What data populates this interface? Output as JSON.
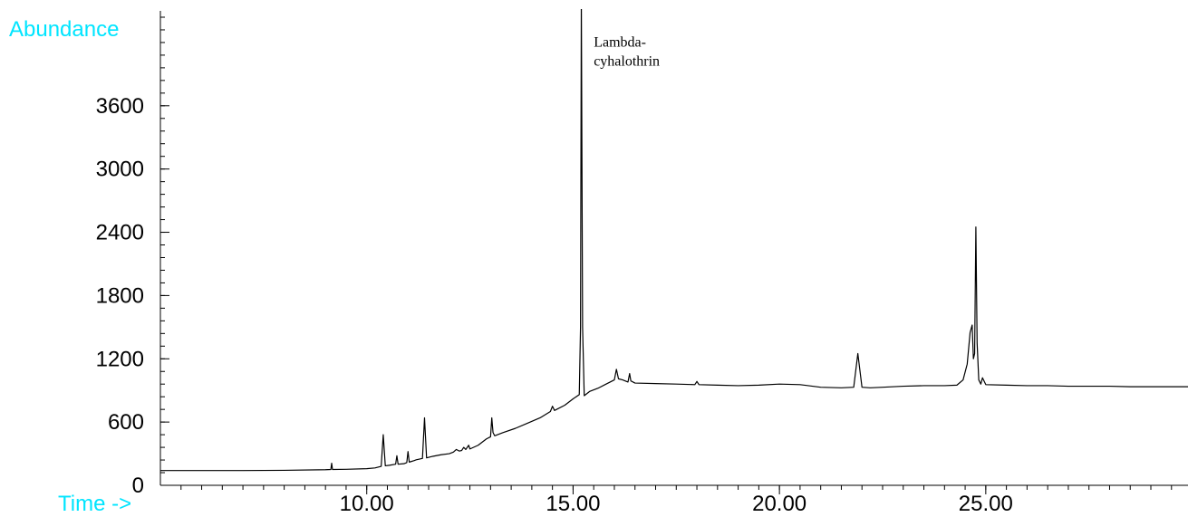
{
  "chart_data": {
    "type": "line",
    "ylabel": "Abundance",
    "xlabel": "Time ->",
    "xlim": [
      5.0,
      29.9
    ],
    "ylim": [
      0,
      4500
    ],
    "x_ticks": [
      10.0,
      15.0,
      20.0,
      25.0
    ],
    "x_tick_labels": [
      "10.00",
      "15.00",
      "20.00",
      "25.00"
    ],
    "y_ticks": [
      0,
      600,
      1200,
      1800,
      2400,
      3000,
      3600
    ],
    "y_tick_labels": [
      "0",
      "600",
      "1200",
      "1800",
      "2400",
      "3000",
      "3600"
    ],
    "x_minor_step": 0.5,
    "y_minor_step": 120,
    "grid": false,
    "colors": {
      "axis_label": "#00e5ff",
      "line": "#000000",
      "text": "#000000"
    },
    "annotation": {
      "lines": [
        "Lambda-",
        "cyhalothrin"
      ],
      "x": 15.5,
      "y": 4160
    },
    "series": [
      {
        "x": [
          5.0,
          6.0,
          7.0,
          8.0,
          9.0,
          9.13,
          9.15,
          9.17,
          9.5,
          10.0,
          10.2,
          10.35,
          10.4,
          10.45,
          10.55,
          10.7,
          10.73,
          10.76,
          10.9,
          10.97,
          11.0,
          11.03,
          11.15,
          11.2,
          11.35,
          11.4,
          11.45,
          11.6,
          11.8,
          12.0,
          12.1,
          12.17,
          12.24,
          12.3,
          12.35,
          12.4,
          12.47,
          12.5,
          12.53,
          12.7,
          12.9,
          13.0,
          13.03,
          13.06,
          13.1,
          13.3,
          13.6,
          13.9,
          14.2,
          14.45,
          14.5,
          14.55,
          14.6,
          14.8,
          15.0,
          15.15,
          15.18,
          15.2,
          15.23,
          15.27,
          15.4,
          15.6,
          15.8,
          16.0,
          16.05,
          16.1,
          16.2,
          16.33,
          16.37,
          16.4,
          16.5,
          17.0,
          17.5,
          17.95,
          18.0,
          18.05,
          18.5,
          19.0,
          19.5,
          20.0,
          20.5,
          21.0,
          21.5,
          21.8,
          21.9,
          22.0,
          22.2,
          22.5,
          23.0,
          23.5,
          24.0,
          24.3,
          24.45,
          24.55,
          24.62,
          24.67,
          24.7,
          24.73,
          24.76,
          24.79,
          24.83,
          24.88,
          24.92,
          25.0,
          25.5,
          26.0,
          26.5,
          27.0,
          27.5,
          28.0,
          28.5,
          29.0,
          29.5,
          29.9
        ],
        "y": [
          140,
          140,
          140,
          142,
          148,
          150,
          210,
          150,
          152,
          158,
          165,
          180,
          480,
          185,
          190,
          200,
          280,
          200,
          205,
          215,
          320,
          220,
          235,
          242,
          255,
          640,
          260,
          275,
          290,
          300,
          315,
          340,
          325,
          330,
          360,
          340,
          380,
          345,
          350,
          380,
          440,
          460,
          640,
          500,
          470,
          500,
          540,
          590,
          640,
          700,
          750,
          710,
          720,
          760,
          820,
          860,
          1500,
          4600,
          1500,
          850,
          890,
          920,
          960,
          1000,
          1100,
          1010,
          1000,
          980,
          1060,
          990,
          970,
          965,
          960,
          955,
          985,
          955,
          950,
          945,
          950,
          960,
          955,
          930,
          925,
          930,
          1250,
          930,
          925,
          930,
          940,
          945,
          945,
          950,
          1000,
          1150,
          1450,
          1520,
          1200,
          1250,
          2450,
          1350,
          1000,
          960,
          1020,
          955,
          950,
          945,
          945,
          940,
          940,
          940,
          935,
          935,
          935,
          935
        ]
      }
    ]
  }
}
